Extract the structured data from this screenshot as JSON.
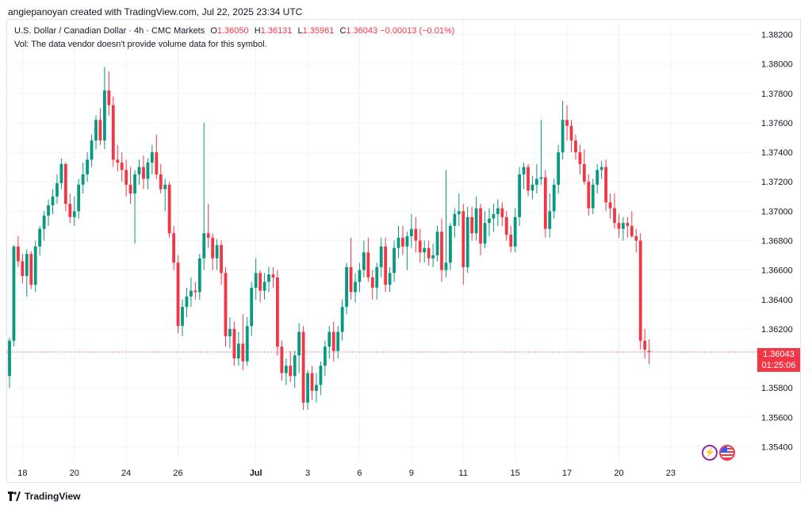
{
  "credit": "angiepanoyan created with TradingView.com, Jul 22, 2025 23:34 UTC",
  "legend": {
    "symbol": "U.S. Dollar / Canadian Dollar · 4h · CMC Markets",
    "open_label": "O",
    "open": "1.36050",
    "high_label": "H",
    "high": "1.36131",
    "low_label": "L",
    "low": "1.35961",
    "close_label": "C",
    "close": "1.36043",
    "change": "−0.00013 (−0.01%)"
  },
  "volume_note": "Vol: The data vendor doesn't provide volume data for this symbol.",
  "price_tag": {
    "price": "1.36043",
    "countdown": "01:25:06"
  },
  "footer": {
    "brand": "TradingView"
  },
  "icons": {
    "alert": "bolt-icon",
    "flag": "us-flag-icon"
  },
  "colors": {
    "up": "#089981",
    "down": "#f23645",
    "grid": "#f0f3fa",
    "text": "#131722"
  },
  "chart_data": {
    "type": "candlestick",
    "ylim": [
      1.353,
      1.383
    ],
    "y_ticks": [
      "1.38200",
      "1.38000",
      "1.37800",
      "1.37600",
      "1.37400",
      "1.37200",
      "1.37000",
      "1.36800",
      "1.36600",
      "1.36400",
      "1.36200",
      "1.36000",
      "1.35800",
      "1.35600",
      "1.35400"
    ],
    "x_ticks": [
      {
        "label": "18",
        "index": 3
      },
      {
        "label": "20",
        "index": 15
      },
      {
        "label": "24",
        "index": 27
      },
      {
        "label": "26",
        "index": 39
      },
      {
        "label": "Jul",
        "index": 57
      },
      {
        "label": "3",
        "index": 69
      },
      {
        "label": "6",
        "index": 81
      },
      {
        "label": "9",
        "index": 93
      },
      {
        "label": "11",
        "index": 105
      },
      {
        "label": "15",
        "index": 117
      },
      {
        "label": "17",
        "index": 129
      },
      {
        "label": "20",
        "index": 141
      },
      {
        "label": "23",
        "index": 153
      }
    ],
    "last_price": 1.36043,
    "candles": [
      [
        1.3588,
        1.3614,
        1.358,
        1.3612
      ],
      [
        1.3612,
        1.3677,
        1.3608,
        1.3676
      ],
      [
        1.3676,
        1.3683,
        1.3662,
        1.3666
      ],
      [
        1.3666,
        1.3671,
        1.3651,
        1.3656
      ],
      [
        1.3656,
        1.3674,
        1.3642,
        1.3671
      ],
      [
        1.3671,
        1.3673,
        1.3647,
        1.365
      ],
      [
        1.365,
        1.368,
        1.3645,
        1.3676
      ],
      [
        1.3676,
        1.369,
        1.367,
        1.3688
      ],
      [
        1.3688,
        1.37,
        1.368,
        1.3697
      ],
      [
        1.3697,
        1.3708,
        1.369,
        1.3704
      ],
      [
        1.3704,
        1.3715,
        1.3698,
        1.371
      ],
      [
        1.371,
        1.3725,
        1.3705,
        1.3719
      ],
      [
        1.3719,
        1.3736,
        1.3715,
        1.3732
      ],
      [
        1.3732,
        1.3733,
        1.37,
        1.3705
      ],
      [
        1.3705,
        1.3712,
        1.3692,
        1.3696
      ],
      [
        1.3696,
        1.371,
        1.369,
        1.37
      ],
      [
        1.37,
        1.3722,
        1.3695,
        1.3718
      ],
      [
        1.3718,
        1.3733,
        1.3712,
        1.3725
      ],
      [
        1.3725,
        1.374,
        1.372,
        1.3735
      ],
      [
        1.3735,
        1.3752,
        1.373,
        1.3748
      ],
      [
        1.3748,
        1.3765,
        1.3742,
        1.3762
      ],
      [
        1.3762,
        1.377,
        1.3745,
        1.3748
      ],
      [
        1.3748,
        1.3798,
        1.3742,
        1.3782
      ],
      [
        1.3782,
        1.3795,
        1.3765,
        1.3772
      ],
      [
        1.3772,
        1.3778,
        1.373,
        1.3735
      ],
      [
        1.3735,
        1.3745,
        1.3727,
        1.3733
      ],
      [
        1.3733,
        1.374,
        1.372,
        1.3728
      ],
      [
        1.3728,
        1.3735,
        1.371,
        1.3718
      ],
      [
        1.3718,
        1.373,
        1.3705,
        1.3712
      ],
      [
        1.3712,
        1.3728,
        1.3678,
        1.3725
      ],
      [
        1.3725,
        1.3735,
        1.3718,
        1.373
      ],
      [
        1.373,
        1.3738,
        1.3715,
        1.3722
      ],
      [
        1.3722,
        1.3736,
        1.3715,
        1.3733
      ],
      [
        1.3733,
        1.3745,
        1.3725,
        1.374
      ],
      [
        1.374,
        1.3752,
        1.3722,
        1.3725
      ],
      [
        1.3725,
        1.3732,
        1.3712,
        1.3715
      ],
      [
        1.3715,
        1.3722,
        1.37,
        1.3718
      ],
      [
        1.3718,
        1.372,
        1.3682,
        1.3685
      ],
      [
        1.3685,
        1.369,
        1.366,
        1.3665
      ],
      [
        1.3665,
        1.367,
        1.3617,
        1.3622
      ],
      [
        1.3622,
        1.364,
        1.3615,
        1.3635
      ],
      [
        1.3635,
        1.3648,
        1.3628,
        1.3642
      ],
      [
        1.3642,
        1.3655,
        1.3635,
        1.3646
      ],
      [
        1.3646,
        1.3652,
        1.364,
        1.3645
      ],
      [
        1.3645,
        1.3671,
        1.364,
        1.3668
      ],
      [
        1.3668,
        1.376,
        1.366,
        1.3685
      ],
      [
        1.3685,
        1.3705,
        1.3675,
        1.3682
      ],
      [
        1.3682,
        1.3685,
        1.366,
        1.3668
      ],
      [
        1.3668,
        1.3681,
        1.366,
        1.3677
      ],
      [
        1.3677,
        1.368,
        1.365,
        1.3658
      ],
      [
        1.3658,
        1.3662,
        1.3608,
        1.3615
      ],
      [
        1.3615,
        1.3628,
        1.3607,
        1.362
      ],
      [
        1.362,
        1.3625,
        1.3595,
        1.36
      ],
      [
        1.36,
        1.3618,
        1.3595,
        1.361
      ],
      [
        1.361,
        1.363,
        1.3592,
        1.3598
      ],
      [
        1.3598,
        1.3628,
        1.3595,
        1.3622
      ],
      [
        1.3622,
        1.3652,
        1.3615,
        1.3648
      ],
      [
        1.3648,
        1.3668,
        1.364,
        1.3658
      ],
      [
        1.3658,
        1.366,
        1.3638,
        1.3646
      ],
      [
        1.3646,
        1.3658,
        1.364,
        1.3652
      ],
      [
        1.3652,
        1.3662,
        1.3645,
        1.3657
      ],
      [
        1.3657,
        1.3662,
        1.3648,
        1.3655
      ],
      [
        1.3655,
        1.366,
        1.3602,
        1.3608
      ],
      [
        1.3608,
        1.3612,
        1.3585,
        1.359
      ],
      [
        1.359,
        1.36,
        1.3582,
        1.3595
      ],
      [
        1.3595,
        1.3605,
        1.3584,
        1.3588
      ],
      [
        1.3588,
        1.3605,
        1.358,
        1.3602
      ],
      [
        1.3602,
        1.3624,
        1.359,
        1.3618
      ],
      [
        1.3618,
        1.3622,
        1.3565,
        1.357
      ],
      [
        1.357,
        1.3592,
        1.3565,
        1.359
      ],
      [
        1.359,
        1.3595,
        1.3572,
        1.3578
      ],
      [
        1.3578,
        1.359,
        1.357,
        1.3582
      ],
      [
        1.3582,
        1.3598,
        1.3575,
        1.3595
      ],
      [
        1.3595,
        1.3612,
        1.3588,
        1.3608
      ],
      [
        1.3608,
        1.3622,
        1.36,
        1.3618
      ],
      [
        1.3618,
        1.3625,
        1.3598,
        1.3605
      ],
      [
        1.3605,
        1.3622,
        1.36,
        1.3618
      ],
      [
        1.3618,
        1.364,
        1.3612,
        1.3635
      ],
      [
        1.3635,
        1.3665,
        1.363,
        1.3662
      ],
      [
        1.3662,
        1.3682,
        1.364,
        1.3645
      ],
      [
        1.3645,
        1.3658,
        1.3638,
        1.3652
      ],
      [
        1.3652,
        1.3665,
        1.3645,
        1.366
      ],
      [
        1.366,
        1.368,
        1.3655,
        1.3672
      ],
      [
        1.3672,
        1.3682,
        1.3652,
        1.3655
      ],
      [
        1.3655,
        1.366,
        1.364,
        1.3648
      ],
      [
        1.3648,
        1.3665,
        1.364,
        1.3662
      ],
      [
        1.3662,
        1.3682,
        1.3655,
        1.3676
      ],
      [
        1.3676,
        1.3682,
        1.3645,
        1.365
      ],
      [
        1.365,
        1.3662,
        1.3645,
        1.3658
      ],
      [
        1.3658,
        1.368,
        1.3652,
        1.3675
      ],
      [
        1.3675,
        1.369,
        1.3668,
        1.3682
      ],
      [
        1.3682,
        1.369,
        1.367,
        1.3676
      ],
      [
        1.3676,
        1.3686,
        1.366,
        1.3683
      ],
      [
        1.3683,
        1.3698,
        1.3675,
        1.3688
      ],
      [
        1.3688,
        1.3696,
        1.3672,
        1.368
      ],
      [
        1.368,
        1.3688,
        1.3665,
        1.3672
      ],
      [
        1.3672,
        1.368,
        1.3665,
        1.3675
      ],
      [
        1.3675,
        1.368,
        1.3663,
        1.3668
      ],
      [
        1.3668,
        1.3678,
        1.3662,
        1.367
      ],
      [
        1.367,
        1.369,
        1.3666,
        1.3686
      ],
      [
        1.3686,
        1.3695,
        1.3652,
        1.366
      ],
      [
        1.366,
        1.3728,
        1.3655,
        1.3665
      ],
      [
        1.3665,
        1.3692,
        1.366,
        1.369
      ],
      [
        1.369,
        1.3702,
        1.3682,
        1.3698
      ],
      [
        1.3698,
        1.3712,
        1.369,
        1.37
      ],
      [
        1.37,
        1.3705,
        1.365,
        1.3662
      ],
      [
        1.3662,
        1.3703,
        1.3658,
        1.3696
      ],
      [
        1.3696,
        1.3703,
        1.368,
        1.3685
      ],
      [
        1.3685,
        1.371,
        1.368,
        1.3702
      ],
      [
        1.3702,
        1.3705,
        1.367,
        1.3678
      ],
      [
        1.3678,
        1.37,
        1.3675,
        1.3692
      ],
      [
        1.3692,
        1.3702,
        1.3683,
        1.3695
      ],
      [
        1.3695,
        1.3705,
        1.3686,
        1.3698
      ],
      [
        1.3698,
        1.3708,
        1.369,
        1.3702
      ],
      [
        1.3702,
        1.3706,
        1.369,
        1.3696
      ],
      [
        1.3696,
        1.37,
        1.368,
        1.3684
      ],
      [
        1.3684,
        1.369,
        1.3672,
        1.3676
      ],
      [
        1.3676,
        1.3702,
        1.3672,
        1.3696
      ],
      [
        1.3696,
        1.373,
        1.369,
        1.3725
      ],
      [
        1.3725,
        1.3733,
        1.3715,
        1.373
      ],
      [
        1.373,
        1.3732,
        1.371,
        1.3714
      ],
      [
        1.3714,
        1.3724,
        1.3708,
        1.3718
      ],
      [
        1.3718,
        1.3732,
        1.3712,
        1.3722
      ],
      [
        1.3722,
        1.3762,
        1.3718,
        1.3723
      ],
      [
        1.3723,
        1.3728,
        1.3682,
        1.3688
      ],
      [
        1.3688,
        1.3712,
        1.3682,
        1.37
      ],
      [
        1.37,
        1.3722,
        1.3695,
        1.3718
      ],
      [
        1.3718,
        1.3745,
        1.3712,
        1.374
      ],
      [
        1.374,
        1.3775,
        1.3735,
        1.3762
      ],
      [
        1.3762,
        1.3772,
        1.3748,
        1.3758
      ],
      [
        1.3758,
        1.3762,
        1.374,
        1.3748
      ],
      [
        1.3748,
        1.3752,
        1.3735,
        1.374
      ],
      [
        1.374,
        1.3745,
        1.3725,
        1.3732
      ],
      [
        1.3732,
        1.3742,
        1.3718,
        1.372
      ],
      [
        1.372,
        1.3725,
        1.3697,
        1.3702
      ],
      [
        1.3702,
        1.3722,
        1.3698,
        1.3718
      ],
      [
        1.3718,
        1.3732,
        1.3712,
        1.3728
      ],
      [
        1.3728,
        1.3734,
        1.3722,
        1.373
      ],
      [
        1.373,
        1.3735,
        1.37,
        1.3706
      ],
      [
        1.3706,
        1.3712,
        1.3695,
        1.3702
      ],
      [
        1.3702,
        1.3712,
        1.3688,
        1.3692
      ],
      [
        1.3692,
        1.3698,
        1.3682,
        1.3688
      ],
      [
        1.3688,
        1.3696,
        1.368,
        1.3692
      ],
      [
        1.3692,
        1.3696,
        1.3682,
        1.369
      ],
      [
        1.369,
        1.37,
        1.3682,
        1.3683
      ],
      [
        1.3683,
        1.3688,
        1.3672,
        1.368
      ],
      [
        1.368,
        1.3685,
        1.3606,
        1.3612
      ],
      [
        1.3612,
        1.362,
        1.36,
        1.3606
      ],
      [
        1.3605,
        1.3613,
        1.3596,
        1.36043
      ]
    ]
  }
}
